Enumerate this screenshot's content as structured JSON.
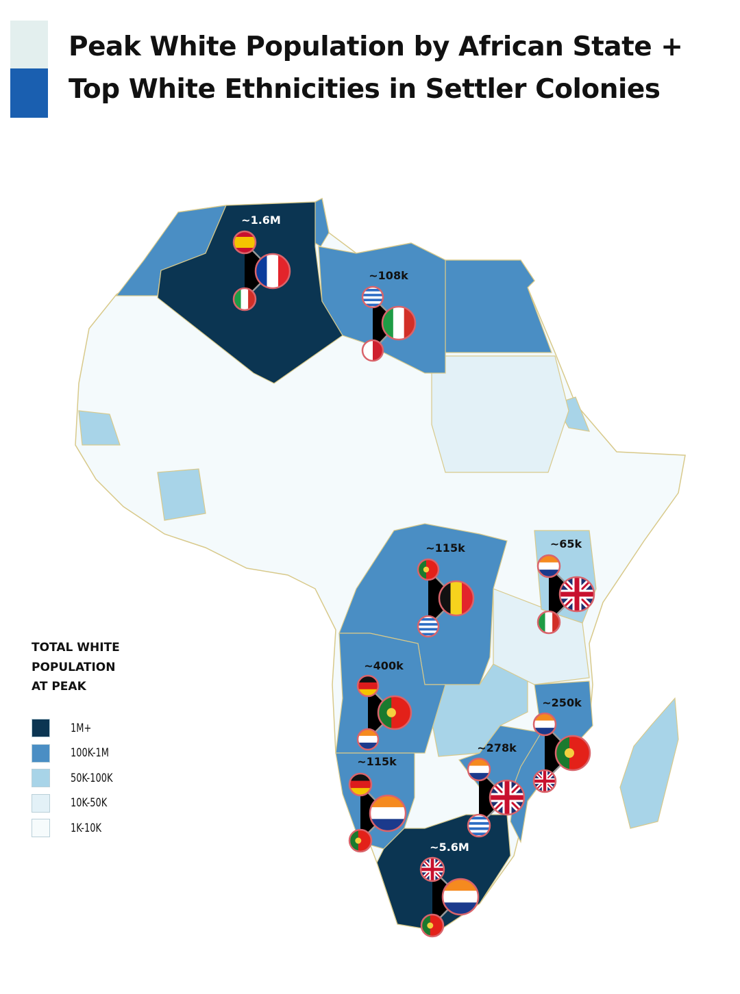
{
  "title": "Peak White Population by African State + Top White Ethnicities in Settler Colonies",
  "legend": {
    "title": "TOTAL WHITE POPULATION AT PEAK",
    "items": [
      {
        "label": "1M+",
        "color": "#0b3552"
      },
      {
        "label": "100K-1M",
        "color": "#4a8ec4"
      },
      {
        "label": "50K-100K",
        "color": "#a8d4e8"
      },
      {
        "label": "10K-50K",
        "color": "#e3f1f7"
      },
      {
        "label": "1K-10K",
        "color": "#f6fbfc"
      }
    ]
  },
  "regions": [
    {
      "label": "~1.6M",
      "level": 0
    },
    {
      "label": "~108k",
      "level": 1
    },
    {
      "label": "~115k",
      "level": 1
    },
    {
      "label": "~65k",
      "level": 2
    },
    {
      "label": "~400k",
      "level": 1
    },
    {
      "label": "~250k",
      "level": 1
    },
    {
      "label": "~278k",
      "level": 1
    },
    {
      "label": "~115k",
      "level": 1
    },
    {
      "label": "~5.6M",
      "level": 0
    }
  ]
}
